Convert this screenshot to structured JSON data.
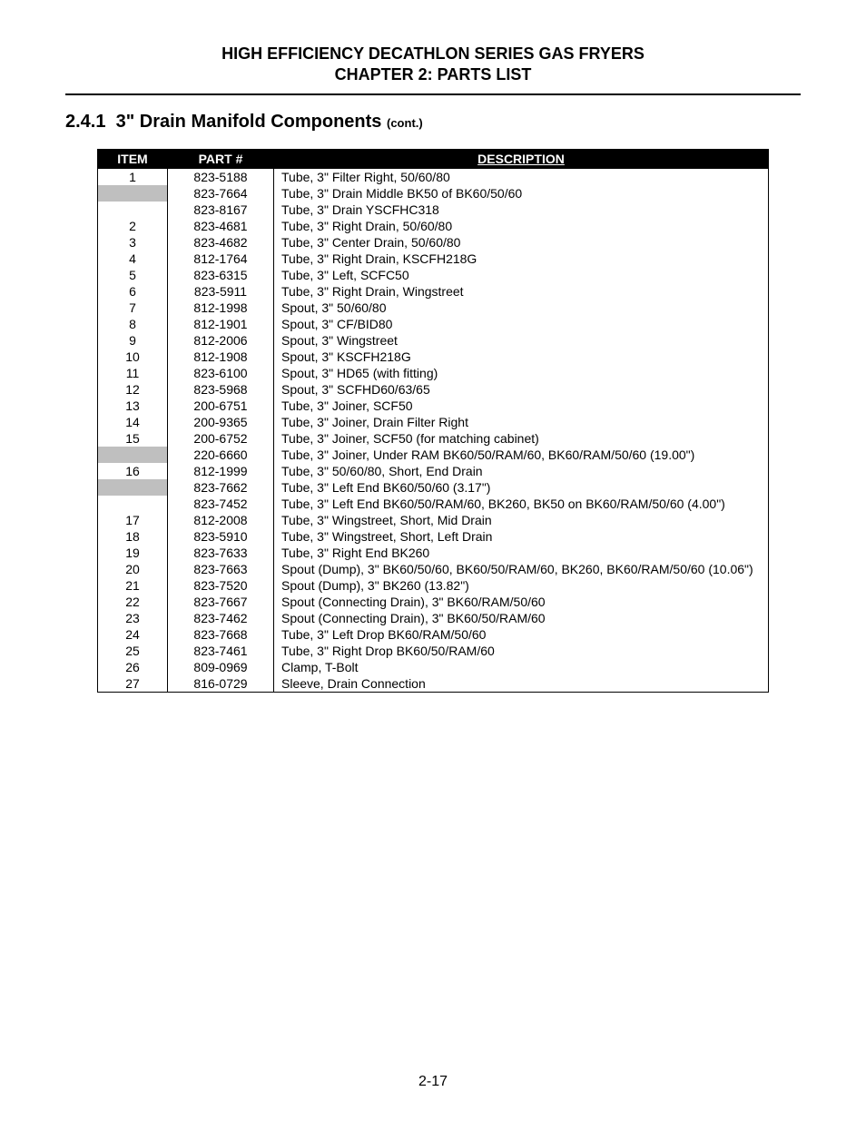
{
  "header": {
    "line1": "HIGH EFFICIENCY DECATHLON SERIES GAS FRYERS",
    "line2": "CHAPTER 2:  PARTS LIST"
  },
  "section": {
    "number": "2.4.1",
    "title": "3\" Drain Manifold Components",
    "cont": "(cont.)"
  },
  "columns": {
    "item": "ITEM",
    "part": "PART #",
    "desc": "DESCRIPTION"
  },
  "page_number": "2-17",
  "rows": [
    {
      "item": "1",
      "part": "823-5188",
      "desc": "Tube, 3\" Filter Right, 50/60/80",
      "shaded": false
    },
    {
      "item": "",
      "part": "823-7664",
      "desc": "Tube, 3\" Drain Middle BK50 of BK60/50/60",
      "shaded": true
    },
    {
      "item": "",
      "part": "823-8167",
      "desc": "Tube, 3\" Drain YSCFHC318",
      "shaded": false
    },
    {
      "item": "2",
      "part": "823-4681",
      "desc": "Tube, 3\" Right Drain, 50/60/80",
      "shaded": false
    },
    {
      "item": "3",
      "part": "823-4682",
      "desc": "Tube, 3\" Center Drain, 50/60/80",
      "shaded": false
    },
    {
      "item": "4",
      "part": "812-1764",
      "desc": "Tube, 3\" Right Drain, KSCFH218G",
      "shaded": false
    },
    {
      "item": "5",
      "part": "823-6315",
      "desc": "Tube, 3\" Left, SCFC50",
      "shaded": false
    },
    {
      "item": "6",
      "part": "823-5911",
      "desc": "Tube, 3\" Right Drain, Wingstreet",
      "shaded": false
    },
    {
      "item": "7",
      "part": "812-1998",
      "desc": "Spout, 3\" 50/60/80",
      "shaded": false
    },
    {
      "item": "8",
      "part": "812-1901",
      "desc": "Spout, 3\" CF/BID80",
      "shaded": false
    },
    {
      "item": "9",
      "part": "812-2006",
      "desc": "Spout, 3\" Wingstreet",
      "shaded": false
    },
    {
      "item": "10",
      "part": "812-1908",
      "desc": "Spout, 3\" KSCFH218G",
      "shaded": false
    },
    {
      "item": "11",
      "part": "823-6100",
      "desc": "Spout, 3\" HD65 (with fitting)",
      "shaded": false
    },
    {
      "item": "12",
      "part": "823-5968",
      "desc": "Spout, 3\" SCFHD60/63/65",
      "shaded": false
    },
    {
      "item": "13",
      "part": "200-6751",
      "desc": "Tube, 3\" Joiner, SCF50",
      "shaded": false
    },
    {
      "item": "14",
      "part": "200-9365",
      "desc": "Tube, 3\" Joiner, Drain Filter Right",
      "shaded": false
    },
    {
      "item": "15",
      "part": "200-6752",
      "desc": "Tube, 3\" Joiner, SCF50 (for matching cabinet)",
      "shaded": false
    },
    {
      "item": "",
      "part": "220-6660",
      "desc": "Tube, 3\" Joiner, Under RAM  BK60/50/RAM/60, BK60/RAM/50/60 (19.00\")",
      "shaded": true
    },
    {
      "item": "16",
      "part": "812-1999",
      "desc": "Tube, 3\" 50/60/80, Short, End Drain",
      "shaded": false
    },
    {
      "item": "",
      "part": "823-7662",
      "desc": "Tube, 3\" Left End BK60/50/60 (3.17\")",
      "shaded": true
    },
    {
      "item": "",
      "part": "823-7452",
      "desc": "Tube, 3\" Left End BK60/50/RAM/60, BK260, BK50 on BK60/RAM/50/60 (4.00\")",
      "shaded": false
    },
    {
      "item": "17",
      "part": "812-2008",
      "desc": "Tube, 3\" Wingstreet, Short, Mid Drain",
      "shaded": false
    },
    {
      "item": "18",
      "part": "823-5910",
      "desc": "Tube, 3\" Wingstreet, Short, Left Drain",
      "shaded": false
    },
    {
      "item": "19",
      "part": "823-7633",
      "desc": "Tube, 3\" Right End BK260",
      "shaded": false
    },
    {
      "item": "20",
      "part": "823-7663",
      "desc": "Spout (Dump), 3\" BK60/50/60, BK60/50/RAM/60, BK260, BK60/RAM/50/60 (10.06\")",
      "shaded": false
    },
    {
      "item": "21",
      "part": "823-7520",
      "desc": "Spout (Dump), 3\" BK260 (13.82\")",
      "shaded": false
    },
    {
      "item": "22",
      "part": "823-7667",
      "desc": "Spout (Connecting Drain), 3\" BK60/RAM/50/60",
      "shaded": false
    },
    {
      "item": "23",
      "part": "823-7462",
      "desc": "Spout (Connecting Drain), 3\" BK60/50/RAM/60",
      "shaded": false
    },
    {
      "item": "24",
      "part": "823-7668",
      "desc": "Tube, 3\" Left Drop BK60/RAM/50/60",
      "shaded": false
    },
    {
      "item": "25",
      "part": "823-7461",
      "desc": "Tube, 3\" Right Drop BK60/50/RAM/60",
      "shaded": false
    },
    {
      "item": "26",
      "part": "809-0969",
      "desc": "Clamp, T-Bolt",
      "shaded": false
    },
    {
      "item": "27",
      "part": "816-0729",
      "desc": "Sleeve, Drain Connection",
      "shaded": false
    }
  ]
}
